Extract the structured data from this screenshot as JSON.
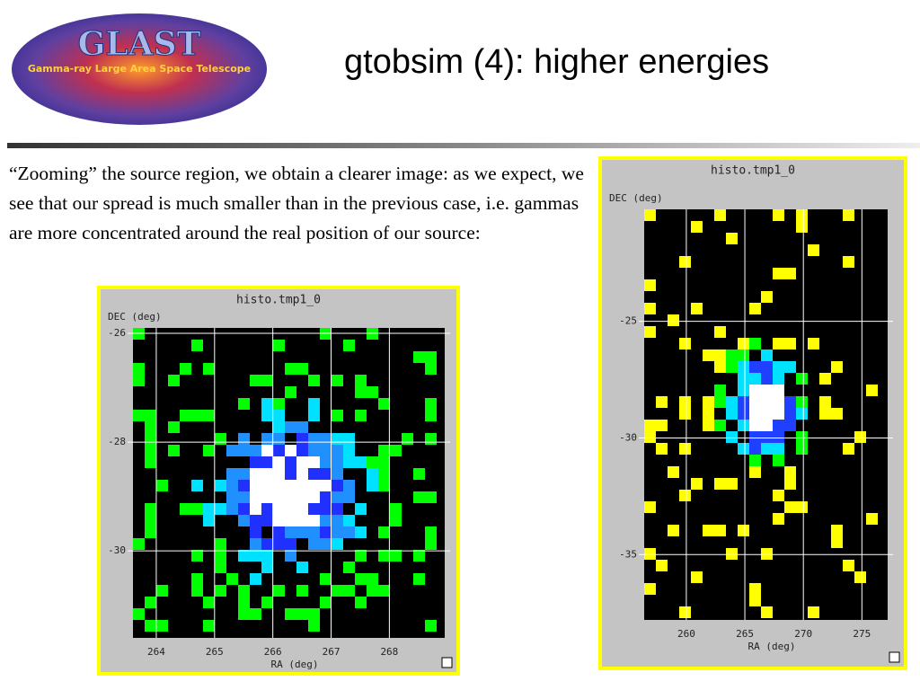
{
  "header": {
    "title": "gtobsim (4): higher energies",
    "logo": {
      "text": "GLAST",
      "subtitle": "Gamma-ray Large Area Space Telescope"
    }
  },
  "body": {
    "text": "“Zooming” the source region, we obtain a clearer image: as we expect, we see that our spread is much smaller than in the previous case, i.e. gammas are more concentrated around the real position of our source:"
  },
  "panels": [
    {
      "title": "histo.tmp1_0",
      "ylabel": "DEC (deg)",
      "xlabel": "RA (deg)",
      "xlim": [
        263.6,
        268.95
      ],
      "ylim": [
        -31.6,
        -25.9
      ],
      "xticks": [
        264,
        265,
        266,
        267,
        268
      ],
      "yticks": [
        -26,
        -28,
        -30
      ]
    },
    {
      "title": "histo.tmp1_0",
      "ylabel": "DEC (deg)",
      "xlabel": "RA (deg)",
      "xlim": [
        256.4,
        277.2
      ],
      "ylim": [
        -37.8,
        -20.2
      ],
      "xticks": [
        260,
        265,
        270,
        275
      ],
      "yticks": [
        -25,
        -30,
        -35
      ]
    }
  ]
}
